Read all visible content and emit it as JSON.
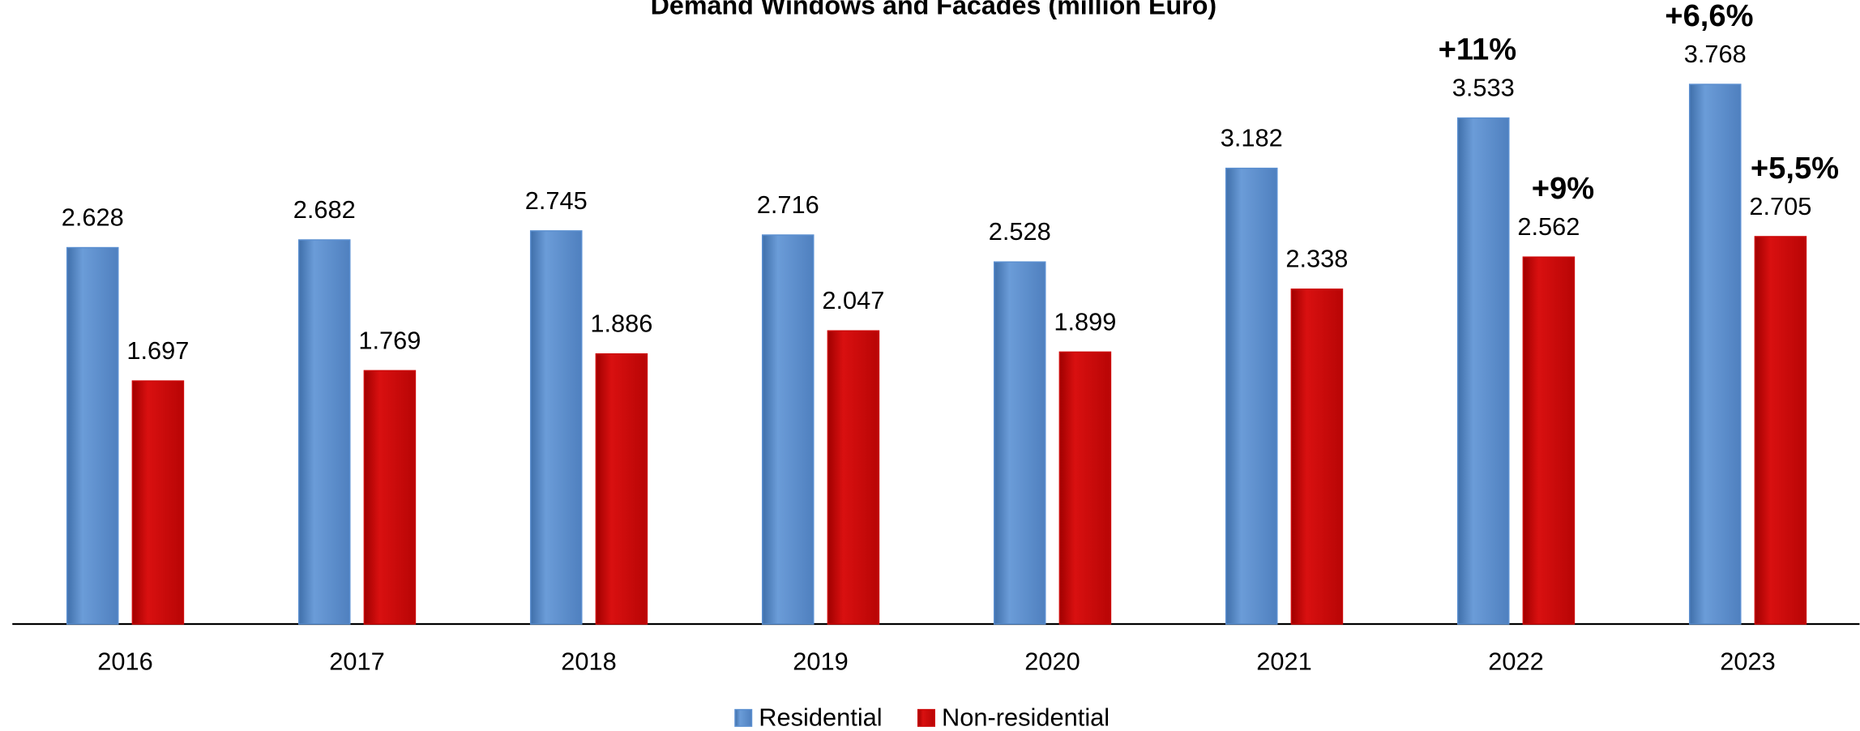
{
  "chart_data": {
    "type": "bar",
    "title": "Demand Windows and Facades (million Euro)",
    "categories": [
      "2016",
      "2017",
      "2018",
      "2019",
      "2020",
      "2021",
      "2022",
      "2023"
    ],
    "series": [
      {
        "name": "Residential",
        "color": "#5b8fd0",
        "values": [
          2628,
          2682,
          2745,
          2716,
          2528,
          3182,
          3533,
          3768
        ],
        "value_labels": [
          "2.628",
          "2.682",
          "2.745",
          "2.716",
          "2.528",
          "3.182",
          "3.533",
          "3.768"
        ],
        "change_labels": [
          null,
          null,
          null,
          null,
          null,
          null,
          "+11%",
          "+6,6%"
        ]
      },
      {
        "name": "Non-residential",
        "color": "#cc0a0a",
        "values": [
          1697,
          1769,
          1886,
          2047,
          1899,
          2338,
          2562,
          2705
        ],
        "value_labels": [
          "1.697",
          "1.769",
          "1.886",
          "2.047",
          "1.899",
          "2.338",
          "2.562",
          "2.705"
        ],
        "change_labels": [
          null,
          null,
          null,
          null,
          null,
          null,
          "+9%",
          "+5,5%"
        ]
      }
    ],
    "legend": "bottom"
  }
}
